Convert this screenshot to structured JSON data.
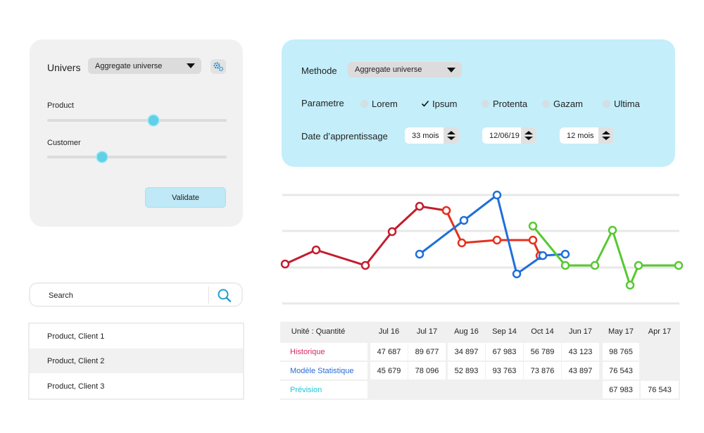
{
  "settings": {
    "univers_label": "Univers",
    "univers_value": "Aggregate universe",
    "product_label": "Product",
    "product_level": 0.59,
    "customer_label": "Customer",
    "customer_level": 0.3,
    "validate_label": "Validate"
  },
  "params": {
    "methode_label": "Methode",
    "methode_value": "Aggregate universe",
    "parametre_label": "Parametre",
    "options": [
      {
        "label": "Lorem",
        "checked": false
      },
      {
        "label": "Ipsum",
        "checked": true
      },
      {
        "label": "Protenta",
        "checked": false
      },
      {
        "label": "Gazam",
        "checked": false
      },
      {
        "label": "Ultima",
        "checked": false
      }
    ],
    "date_label": "Date d’apprentissage",
    "spinners": [
      "33 mois",
      "12/06/19",
      "12 mois"
    ]
  },
  "search": {
    "placeholder": "Search"
  },
  "list": [
    "Product, Client 1",
    "Product, Client 2",
    "Product, Client 3"
  ],
  "chart_data": {
    "type": "line",
    "series": [
      {
        "color": "#c21d2d",
        "values": [
          59,
          69,
          58,
          82,
          100,
          97,
          74,
          76,
          76,
          65
        ]
      },
      {
        "color": "#e4311e",
        "values": [
          null,
          null,
          null,
          null,
          null,
          97,
          74,
          76,
          76,
          65
        ]
      },
      {
        "color": "#1f6fd9",
        "values": [
          66,
          90,
          108,
          52,
          65,
          66
        ]
      },
      {
        "color": "#56c92f",
        "values": [
          86,
          58,
          58,
          83,
          44,
          58,
          58
        ]
      }
    ],
    "ylim": [
      0,
      120
    ],
    "grid": true
  },
  "table": {
    "header_label": "Unité : Quantité",
    "months": [
      "Jul 16",
      "Jul 17",
      "Aug 16",
      "Sep 14",
      "Oct 14",
      "Jun 17",
      "May 17",
      "Apr 17"
    ],
    "rows": [
      {
        "label": "Historique",
        "color": "#d62a5e",
        "values": [
          "47 687",
          "89 677",
          "34 897",
          "67 983",
          "56 789",
          "43 123",
          "98 765",
          ""
        ]
      },
      {
        "label": "Modèle Statistique",
        "color": "#2a6bd6",
        "values": [
          "45 679",
          "78 096",
          "52 893",
          "93 763",
          "73 876",
          "43 897",
          "76 543",
          ""
        ]
      },
      {
        "label": "Prévision",
        "color": "#22c3d3",
        "values": [
          "",
          "",
          "",
          "",
          "",
          "",
          "67 983",
          "76 543"
        ]
      }
    ]
  },
  "icons": {
    "settings": "gears-icon",
    "search": "search-icon",
    "check": "checkmark-icon"
  },
  "colors": {
    "accent": "#5fd0e8",
    "panel_blue": "#c4eefa"
  }
}
